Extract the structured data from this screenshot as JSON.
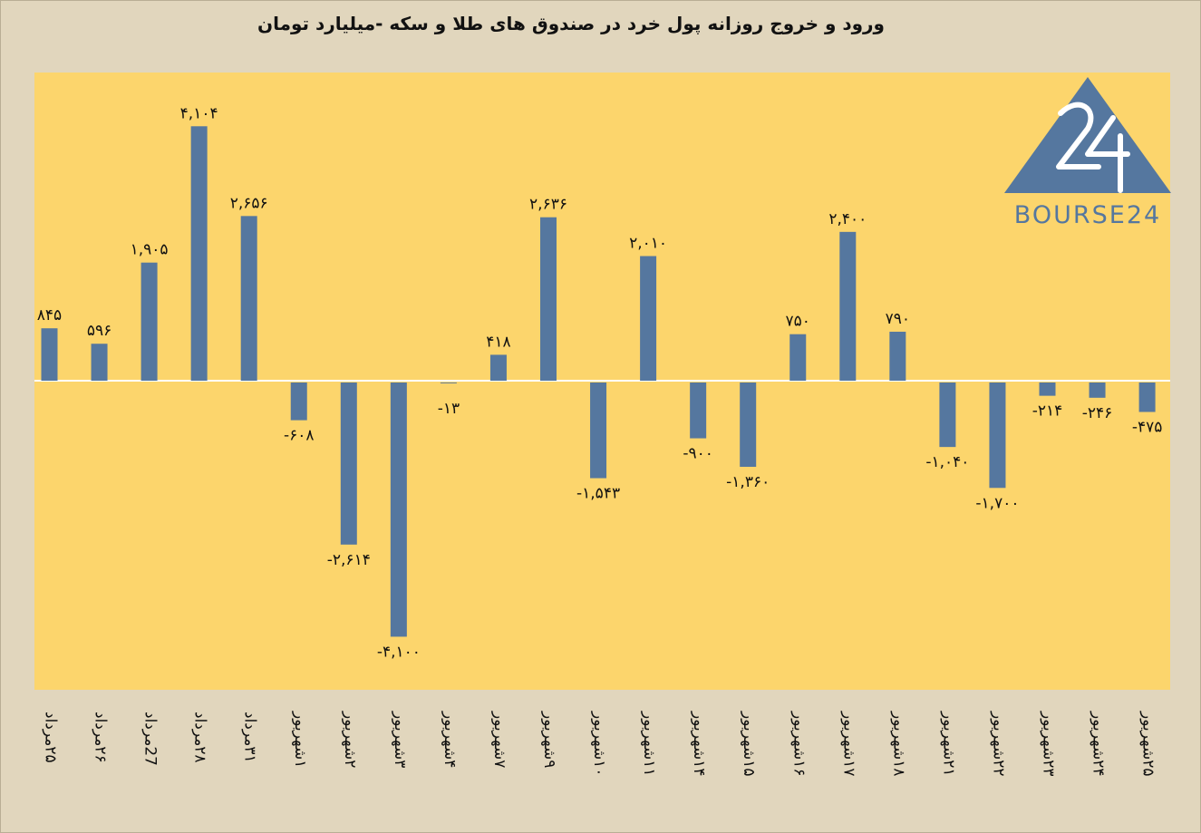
{
  "chart_data": {
    "type": "bar",
    "title": "ورود و خروج روزانه پول خرد در صندوق های طلا و سکه -میلیارد تومان",
    "categories": [
      "۲۵مرداد",
      "۲۶مرداد",
      "27مرداد",
      "۲۸مرداد",
      "۳۱مرداد",
      "۱شهریور",
      "۲شهریور",
      "۳شهریور",
      "۴شهریور",
      "۷شهریور",
      "۹شهریور",
      "۱۰شهریور",
      "۱۱شهریور",
      "۱۴شهریور",
      "۱۵شهریور",
      "۱۶شهریور",
      "۱۷شهریور",
      "۱۸شهریور",
      "۲۱شهریور",
      "۲۲شهریور",
      "۲۳شهریور",
      "۲۴شهریور",
      "۲۵شهریور"
    ],
    "values": [
      845,
      596,
      1905,
      4104,
      2656,
      -608,
      -2614,
      -4100,
      -13,
      418,
      2636,
      -1543,
      2010,
      -900,
      -1360,
      750,
      2400,
      790,
      -1040,
      -1700,
      -214,
      -246,
      -475
    ],
    "data_labels": [
      "۸۴۵",
      "۵۹۶",
      "۱,۹۰۵",
      "۴,۱۰۴",
      "۲,۶۵۶",
      "-۶۰۸",
      "-۲,۶۱۴",
      "-۴,۱۰۰",
      "-۱۳",
      "۴۱۸",
      "۲,۶۳۶",
      "-۱,۵۴۳",
      "۲,۰۱۰",
      "-۹۰۰",
      "-۱,۳۶۰",
      "۷۵۰",
      "۲,۴۰۰",
      "۷۹۰",
      "-۱,۰۴۰",
      "-۱,۷۰۰",
      "-۲۱۴",
      "-۲۴۶",
      "-۴۷۵"
    ],
    "xlabel": "",
    "ylabel": "",
    "ylim": [
      -5000,
      5000
    ],
    "grid": false,
    "legend": "none",
    "colors": {
      "bar": "#55779f",
      "plot_background": "#fcd56c",
      "page_background": "#e1d6bd",
      "zero_line": "#ffffff",
      "text": "#111111"
    }
  },
  "logo": {
    "text": "BOURSE24",
    "mark": "24",
    "color": "#55779f"
  }
}
